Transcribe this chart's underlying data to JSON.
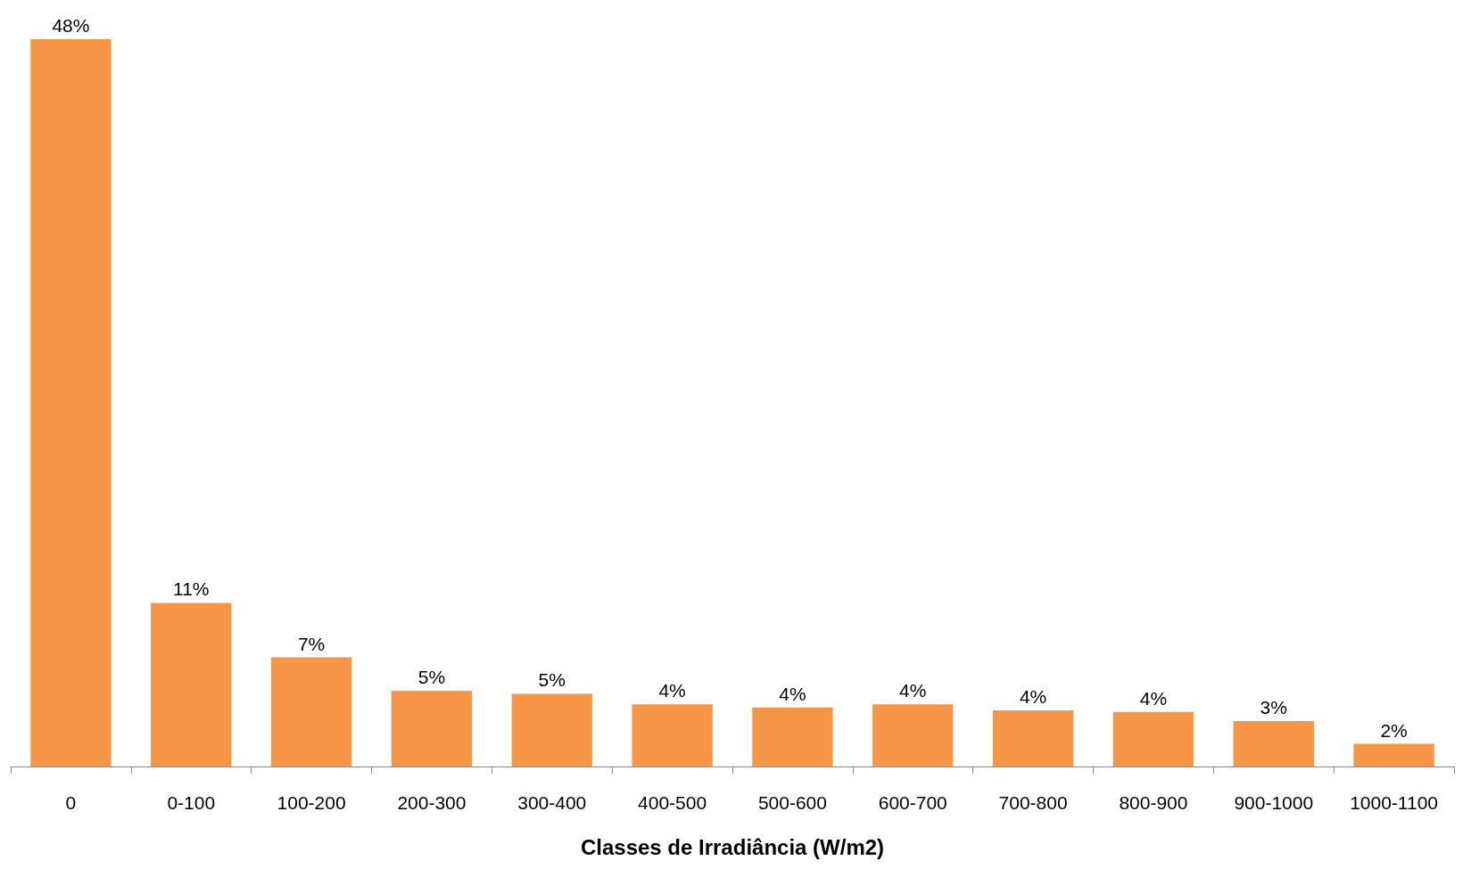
{
  "chart_data": {
    "type": "bar",
    "xlabel": "Classes de Irradiância (W/m2)",
    "categories": [
      "0",
      "0-100",
      "100-200",
      "200-300",
      "300-400",
      "400-500",
      "500-600",
      "600-700",
      "700-800",
      "800-900",
      "900-1000",
      "1000-1100"
    ],
    "values": [
      48,
      10.8,
      7.2,
      5.0,
      4.8,
      4.1,
      3.9,
      4.1,
      3.7,
      3.6,
      3.0,
      1.5
    ],
    "value_labels": [
      "48%",
      "11%",
      "7%",
      "5%",
      "5%",
      "4%",
      "4%",
      "4%",
      "4%",
      "4%",
      "3%",
      "2%"
    ],
    "color": "#f79646"
  }
}
